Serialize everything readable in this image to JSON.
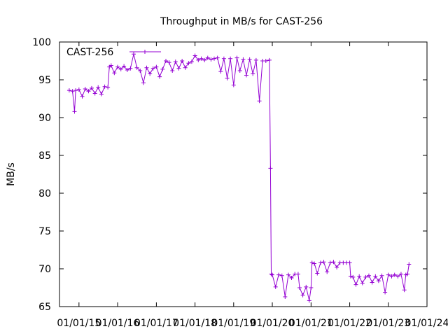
{
  "chart_data": {
    "type": "line",
    "title": "Throughput in MB/s for CAST-256",
    "xlabel": "",
    "ylabel": "MB/s",
    "x_tick_labels": [
      "01/01/15",
      "01/01/16",
      "01/01/17",
      "01/01/18",
      "01/01/19",
      "01/01/20",
      "01/01/21",
      "01/01/22",
      "01/01/23",
      "01/01/24"
    ],
    "xlim": [
      "2014-07-01",
      "2024-01-01"
    ],
    "ylim": [
      65,
      100
    ],
    "y_ticks": [
      65,
      70,
      75,
      80,
      85,
      90,
      95,
      100
    ],
    "grid": false,
    "legend_position": "top-left",
    "series": [
      {
        "name": "CAST-256",
        "color": "#9400d3",
        "points": [
          [
            "2014-10-01",
            93.6
          ],
          [
            "2014-11-01",
            93.5
          ],
          [
            "2014-11-20",
            90.8
          ],
          [
            "2014-12-01",
            93.6
          ],
          [
            "2015-01-01",
            93.7
          ],
          [
            "2015-02-01",
            92.8
          ],
          [
            "2015-03-01",
            93.8
          ],
          [
            "2015-04-01",
            93.5
          ],
          [
            "2015-05-01",
            93.9
          ],
          [
            "2015-06-01",
            93.2
          ],
          [
            "2015-07-01",
            94.0
          ],
          [
            "2015-08-01",
            93.1
          ],
          [
            "2015-09-01",
            94.1
          ],
          [
            "2015-10-01",
            94.0
          ],
          [
            "2015-10-15",
            96.7
          ],
          [
            "2015-11-01",
            96.9
          ],
          [
            "2015-12-01",
            95.9
          ],
          [
            "2016-01-01",
            96.7
          ],
          [
            "2016-02-01",
            96.4
          ],
          [
            "2016-03-01",
            96.8
          ],
          [
            "2016-04-01",
            96.3
          ],
          [
            "2016-05-01",
            96.5
          ],
          [
            "2016-06-01",
            98.4
          ],
          [
            "2016-07-01",
            96.6
          ],
          [
            "2016-08-01",
            96.2
          ],
          [
            "2016-09-01",
            94.6
          ],
          [
            "2016-10-01",
            96.6
          ],
          [
            "2016-11-01",
            95.8
          ],
          [
            "2016-12-01",
            96.5
          ],
          [
            "2017-01-01",
            96.7
          ],
          [
            "2017-02-01",
            95.4
          ],
          [
            "2017-03-01",
            96.4
          ],
          [
            "2017-04-01",
            97.5
          ],
          [
            "2017-05-01",
            97.3
          ],
          [
            "2017-06-01",
            96.2
          ],
          [
            "2017-07-01",
            97.4
          ],
          [
            "2017-08-01",
            96.5
          ],
          [
            "2017-09-01",
            97.5
          ],
          [
            "2017-10-01",
            96.6
          ],
          [
            "2017-11-01",
            97.2
          ],
          [
            "2017-12-01",
            97.4
          ],
          [
            "2018-01-01",
            98.2
          ],
          [
            "2018-02-01",
            97.6
          ],
          [
            "2018-03-01",
            97.8
          ],
          [
            "2018-04-01",
            97.6
          ],
          [
            "2018-05-01",
            97.9
          ],
          [
            "2018-06-01",
            97.7
          ],
          [
            "2018-07-01",
            97.8
          ],
          [
            "2018-08-01",
            97.9
          ],
          [
            "2018-09-01",
            96.1
          ],
          [
            "2018-10-01",
            97.8
          ],
          [
            "2018-11-01",
            95.2
          ],
          [
            "2018-12-01",
            97.8
          ],
          [
            "2019-01-01",
            94.3
          ],
          [
            "2019-02-01",
            97.9
          ],
          [
            "2019-03-01",
            96.2
          ],
          [
            "2019-04-01",
            97.7
          ],
          [
            "2019-05-01",
            95.6
          ],
          [
            "2019-06-01",
            97.7
          ],
          [
            "2019-07-01",
            95.8
          ],
          [
            "2019-08-01",
            97.6
          ],
          [
            "2019-09-01",
            92.2
          ],
          [
            "2019-10-01",
            97.5
          ],
          [
            "2019-11-01",
            97.5
          ],
          [
            "2019-12-05",
            97.6
          ],
          [
            "2019-12-15",
            83.3
          ],
          [
            "2019-12-22",
            69.3
          ],
          [
            "2020-01-01",
            69.2
          ],
          [
            "2020-02-01",
            67.6
          ],
          [
            "2020-03-01",
            69.2
          ],
          [
            "2020-04-01",
            69.1
          ],
          [
            "2020-05-01",
            66.3
          ],
          [
            "2020-06-01",
            69.2
          ],
          [
            "2020-07-01",
            68.8
          ],
          [
            "2020-08-01",
            69.3
          ],
          [
            "2020-09-01",
            69.3
          ],
          [
            "2020-09-15",
            67.5
          ],
          [
            "2020-10-15",
            66.5
          ],
          [
            "2020-11-15",
            67.6
          ],
          [
            "2020-12-15",
            65.8
          ],
          [
            "2021-01-01",
            67.5
          ],
          [
            "2021-01-10",
            70.8
          ],
          [
            "2021-02-01",
            70.7
          ],
          [
            "2021-03-01",
            69.4
          ],
          [
            "2021-04-01",
            70.8
          ],
          [
            "2021-05-01",
            70.9
          ],
          [
            "2021-06-01",
            69.6
          ],
          [
            "2021-07-01",
            70.8
          ],
          [
            "2021-08-01",
            70.9
          ],
          [
            "2021-09-01",
            70.2
          ],
          [
            "2021-10-01",
            70.8
          ],
          [
            "2021-11-01",
            70.8
          ],
          [
            "2021-12-01",
            70.8
          ],
          [
            "2022-01-01",
            70.8
          ],
          [
            "2022-01-10",
            69.0
          ],
          [
            "2022-02-01",
            68.9
          ],
          [
            "2022-03-01",
            67.9
          ],
          [
            "2022-04-01",
            69.0
          ],
          [
            "2022-05-01",
            68.1
          ],
          [
            "2022-06-01",
            68.9
          ],
          [
            "2022-07-01",
            69.1
          ],
          [
            "2022-08-01",
            68.2
          ],
          [
            "2022-09-01",
            69.0
          ],
          [
            "2022-10-01",
            68.4
          ],
          [
            "2022-11-01",
            69.1
          ],
          [
            "2022-12-01",
            66.9
          ],
          [
            "2023-01-01",
            69.2
          ],
          [
            "2023-02-01",
            69.0
          ],
          [
            "2023-03-01",
            69.2
          ],
          [
            "2023-04-01",
            69.0
          ],
          [
            "2023-05-01",
            69.3
          ],
          [
            "2023-06-01",
            67.2
          ],
          [
            "2023-06-15",
            69.2
          ],
          [
            "2023-07-01",
            69.3
          ],
          [
            "2023-07-15",
            70.6
          ]
        ]
      }
    ]
  }
}
